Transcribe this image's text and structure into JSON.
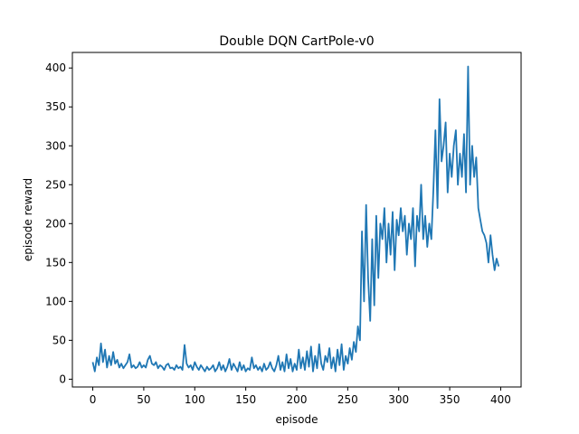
{
  "chart_data": {
    "type": "line",
    "title": "Double DQN CartPole-v0",
    "xlabel": "episode",
    "ylabel": "episode reward",
    "xlim": [
      -20,
      420
    ],
    "ylim": [
      -10,
      420
    ],
    "xticks": [
      0,
      50,
      100,
      150,
      200,
      250,
      300,
      350,
      400
    ],
    "yticks": [
      0,
      50,
      100,
      150,
      200,
      250,
      300,
      350,
      400
    ],
    "grid": false,
    "color": "#1f77b4",
    "series": [
      {
        "name": "",
        "x": [
          0,
          2,
          4,
          6,
          8,
          10,
          12,
          14,
          16,
          18,
          20,
          22,
          24,
          26,
          28,
          30,
          32,
          34,
          36,
          38,
          40,
          42,
          44,
          46,
          48,
          50,
          52,
          54,
          56,
          58,
          60,
          62,
          64,
          66,
          68,
          70,
          72,
          74,
          76,
          78,
          80,
          82,
          84,
          86,
          88,
          90,
          92,
          94,
          96,
          98,
          100,
          102,
          104,
          106,
          108,
          110,
          112,
          114,
          116,
          118,
          120,
          122,
          124,
          126,
          128,
          130,
          132,
          134,
          136,
          138,
          140,
          142,
          144,
          146,
          148,
          150,
          152,
          154,
          156,
          158,
          160,
          162,
          164,
          166,
          168,
          170,
          172,
          174,
          176,
          178,
          180,
          182,
          184,
          186,
          188,
          190,
          192,
          194,
          196,
          198,
          200,
          202,
          204,
          206,
          208,
          210,
          212,
          214,
          216,
          218,
          220,
          222,
          224,
          226,
          228,
          230,
          232,
          234,
          236,
          238,
          240,
          242,
          244,
          246,
          248,
          250,
          252,
          254,
          256,
          258,
          260,
          262,
          264,
          266,
          268,
          270,
          272,
          274,
          276,
          278,
          280,
          282,
          284,
          286,
          288,
          290,
          292,
          294,
          296,
          298,
          300,
          302,
          304,
          306,
          308,
          310,
          312,
          314,
          316,
          318,
          320,
          322,
          324,
          326,
          328,
          330,
          332,
          334,
          336,
          338,
          340,
          342,
          344,
          346,
          348,
          350,
          352,
          354,
          356,
          358,
          360,
          362,
          364,
          366,
          368,
          370,
          372,
          374,
          376,
          378,
          380,
          382,
          384,
          386,
          388,
          390,
          392,
          394,
          396,
          398
        ],
        "y": [
          22,
          10,
          28,
          18,
          46,
          22,
          38,
          15,
          30,
          18,
          35,
          20,
          25,
          15,
          20,
          14,
          18,
          22,
          32,
          15,
          18,
          14,
          16,
          22,
          15,
          18,
          15,
          25,
          30,
          20,
          18,
          22,
          14,
          18,
          16,
          12,
          18,
          20,
          14,
          15,
          12,
          18,
          14,
          16,
          12,
          44,
          20,
          15,
          18,
          12,
          22,
          16,
          12,
          18,
          14,
          10,
          16,
          12,
          14,
          18,
          10,
          14,
          22,
          12,
          18,
          10,
          16,
          26,
          12,
          20,
          15,
          10,
          22,
          12,
          18,
          10,
          14,
          12,
          28,
          14,
          18,
          12,
          16,
          10,
          20,
          12,
          15,
          22,
          14,
          10,
          18,
          30,
          12,
          22,
          10,
          32,
          14,
          26,
          10,
          20,
          12,
          38,
          14,
          28,
          12,
          36,
          16,
          42,
          10,
          30,
          14,
          45,
          20,
          12,
          30,
          22,
          40,
          14,
          28,
          10,
          38,
          18,
          45,
          12,
          30,
          20,
          40,
          25,
          48,
          35,
          68,
          50,
          190,
          100,
          224,
          130,
          75,
          180,
          95,
          210,
          130,
          200,
          180,
          220,
          150,
          200,
          160,
          215,
          140,
          205,
          185,
          220,
          190,
          210,
          160,
          200,
          180,
          220,
          145,
          210,
          190,
          250,
          180,
          210,
          170,
          200,
          180,
          245,
          320,
          220,
          360,
          280,
          300,
          330,
          240,
          290,
          260,
          300,
          320,
          250,
          290,
          260,
          315,
          240,
          402,
          250,
          300,
          260,
          285,
          220,
          205,
          190,
          185,
          175,
          150,
          185,
          160,
          140,
          155,
          145
        ]
      }
    ]
  }
}
